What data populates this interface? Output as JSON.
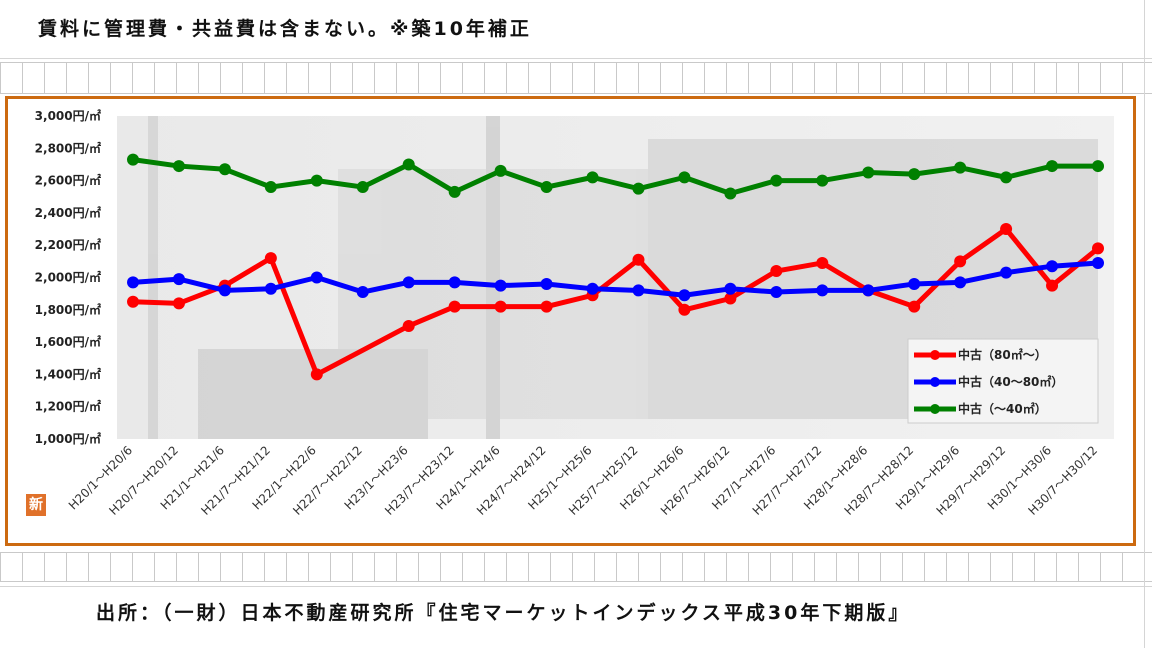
{
  "header": {
    "note": "賃料に管理費・共益費は含まない。※築10年補正"
  },
  "footer": {
    "source": "出所：（一財）日本不動産研究所『住宅マーケットインデックス平成30年下期版』"
  },
  "badge": {
    "label": "新"
  },
  "colors": {
    "frame": "#cc6a10",
    "red": "#ff0000",
    "blue": "#0000ff",
    "green": "#008000"
  },
  "chart_data": {
    "type": "line",
    "title": "",
    "xlabel": "",
    "ylabel": "",
    "ylim": [
      1000,
      3000
    ],
    "y_ticks": [
      1000,
      1200,
      1400,
      1600,
      1800,
      2000,
      2200,
      2400,
      2600,
      2800,
      3000
    ],
    "y_tick_labels": [
      "1,000円/㎡",
      "1,200円/㎡",
      "1,400円/㎡",
      "1,600円/㎡",
      "1,800円/㎡",
      "2,000円/㎡",
      "2,200円/㎡",
      "2,400円/㎡",
      "2,600円/㎡",
      "2,800円/㎡",
      "3,000円/㎡"
    ],
    "categories": [
      "H20/1～H20/6",
      "H20/7～H20/12",
      "H21/1～H21/6",
      "H21/7～H21/12",
      "H22/1～H22/6",
      "H22/7～H22/12",
      "H23/1～H23/6",
      "H23/7～H23/12",
      "H24/1～H24/6",
      "H24/7～H24/12",
      "H25/1～H25/6",
      "H25/7～H25/12",
      "H26/1～H26/6",
      "H26/7～H26/12",
      "H27/1～H27/6",
      "H27/7～H27/12",
      "H28/1～H28/6",
      "H28/7～H28/12",
      "H29/1～H29/6",
      "H29/7～H29/12",
      "H30/1～H30/6",
      "H30/7～H30/12"
    ],
    "legend_position": "bottom-right",
    "grid": false,
    "series": [
      {
        "name": "中古（80㎡～）",
        "color": "#ff0000",
        "values": [
          1850,
          1840,
          1950,
          2120,
          1400,
          null,
          1700,
          1820,
          1820,
          1820,
          1890,
          2110,
          1800,
          1870,
          2040,
          2090,
          1920,
          1820,
          2100,
          2300,
          1950,
          2180
        ]
      },
      {
        "name": "中古（40～80㎡）",
        "color": "#0000ff",
        "values": [
          1970,
          1990,
          1920,
          1930,
          2000,
          1910,
          1970,
          1970,
          1950,
          1960,
          1930,
          1920,
          1890,
          1930,
          1910,
          1920,
          1920,
          1960,
          1970,
          2030,
          2070,
          2090
        ]
      },
      {
        "name": "中古（～40㎡）",
        "color": "#008000",
        "values": [
          2730,
          2690,
          2670,
          2560,
          2600,
          2560,
          2700,
          2530,
          2660,
          2560,
          2620,
          2550,
          2620,
          2520,
          2600,
          2600,
          2650,
          2640,
          2680,
          2620,
          2690,
          2690
        ]
      }
    ]
  }
}
